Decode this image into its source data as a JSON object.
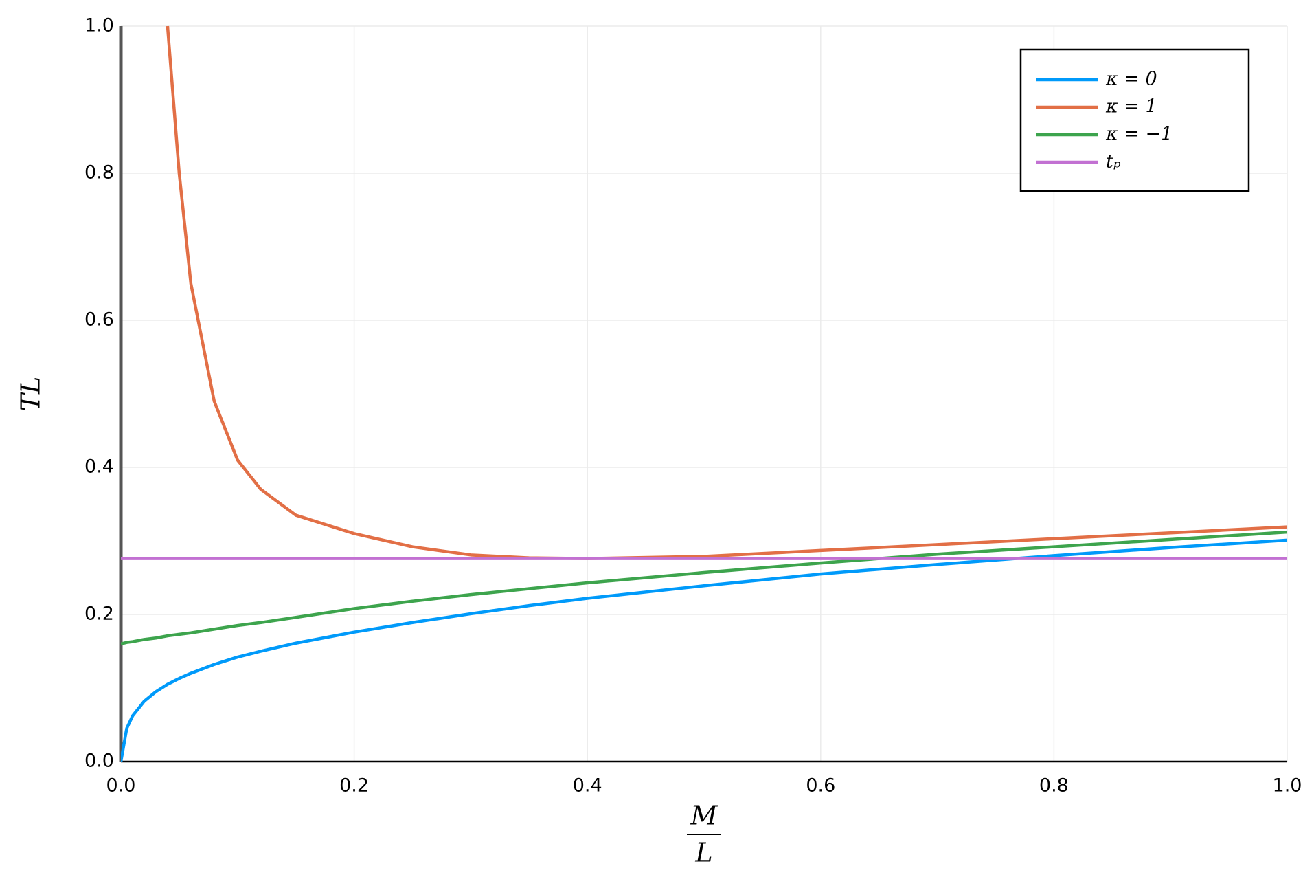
{
  "chart_data": {
    "type": "line",
    "ylabel": "TL",
    "xlabel": {
      "numerator": "M",
      "denominator": "L"
    },
    "x": [
      0,
      0.005,
      0.01,
      0.02,
      0.03,
      0.04,
      0.05,
      0.06,
      0.08,
      0.1,
      0.12,
      0.15,
      0.2,
      0.25,
      0.3,
      0.35,
      0.4,
      0.5,
      0.6,
      0.7,
      0.8,
      0.9,
      1.0
    ],
    "series": [
      {
        "name": "κ = 0",
        "color": "#009afa",
        "values": [
          0,
          0.045,
          0.062,
          0.082,
          0.095,
          0.105,
          0.113,
          0.12,
          0.132,
          0.142,
          0.15,
          0.161,
          0.176,
          0.189,
          0.201,
          0.212,
          0.222,
          0.239,
          0.255,
          0.268,
          0.28,
          0.291,
          0.301
        ]
      },
      {
        "name": "κ = 1",
        "color": "#e26f46",
        "values": [
          null,
          null,
          null,
          null,
          null,
          1.0,
          0.8,
          0.65,
          0.49,
          0.41,
          0.37,
          0.335,
          0.31,
          0.292,
          0.281,
          0.277,
          0.276,
          0.279,
          0.287,
          0.295,
          0.303,
          0.311,
          0.319
        ]
      },
      {
        "name": "κ = −1",
        "color": "#3da44d",
        "values": [
          0.16,
          0.162,
          0.163,
          0.166,
          0.168,
          0.171,
          0.173,
          0.175,
          0.18,
          0.185,
          0.189,
          0.196,
          0.208,
          0.218,
          0.227,
          0.235,
          0.243,
          0.257,
          0.27,
          0.282,
          0.292,
          0.302,
          0.312
        ]
      },
      {
        "name": "tₚ",
        "color": "#c271d2",
        "values": [
          0.276,
          0.276,
          0.276,
          0.276,
          0.276,
          0.276,
          0.276,
          0.276,
          0.276,
          0.276,
          0.276,
          0.276,
          0.276,
          0.276,
          0.276,
          0.276,
          0.276,
          0.276,
          0.276,
          0.276,
          0.276,
          0.276,
          0.276
        ]
      }
    ],
    "xlim": [
      0,
      1
    ],
    "ylim": [
      0,
      1
    ],
    "xticks": [
      {
        "value": 0,
        "label": "0.0"
      },
      {
        "value": 0.2,
        "label": "0.2"
      },
      {
        "value": 0.4,
        "label": "0.4"
      },
      {
        "value": 0.6,
        "label": "0.6"
      },
      {
        "value": 0.8,
        "label": "0.8"
      },
      {
        "value": 1,
        "label": "1.0"
      }
    ],
    "yticks": [
      {
        "value": 0,
        "label": "0.0"
      },
      {
        "value": 0.2,
        "label": "0.2"
      },
      {
        "value": 0.4,
        "label": "0.4"
      },
      {
        "value": 0.6,
        "label": "0.6"
      },
      {
        "value": 0.8,
        "label": "0.8"
      },
      {
        "value": 1,
        "label": "1.0"
      }
    ],
    "grid": true,
    "legend": "top-right"
  }
}
